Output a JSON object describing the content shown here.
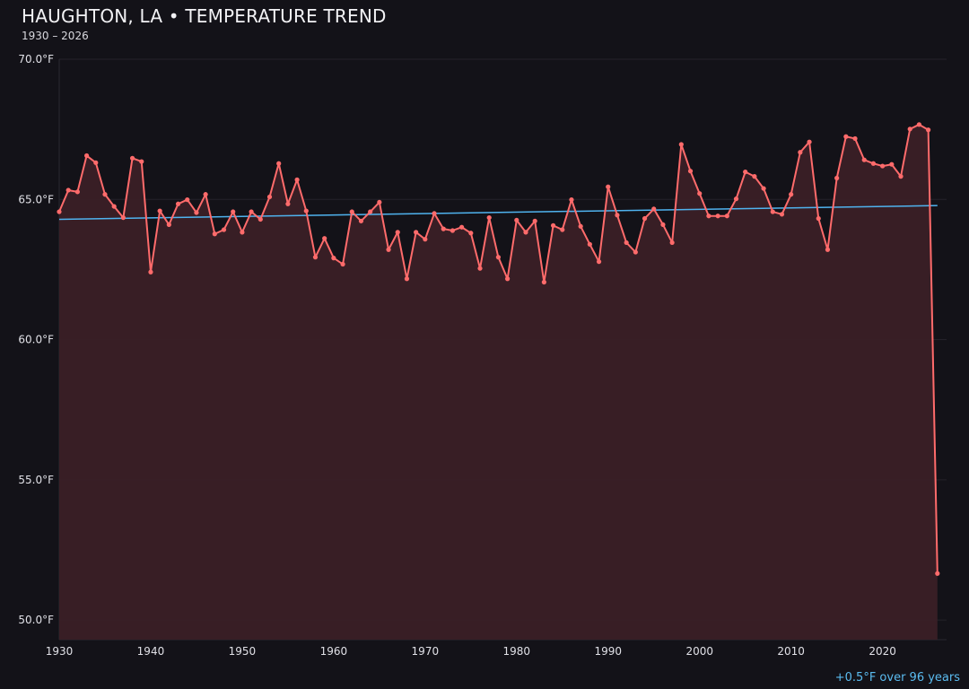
{
  "title": "HAUGHTON, LA • TEMPERATURE TREND",
  "subtitle": "1930 – 2026",
  "footer_note": "+0.5°F over 96 years",
  "colors": {
    "background": "#131218",
    "series": "#ff6b6b",
    "fill": "#3a2026",
    "trend": "#4fb3ef",
    "grid": "#24222a",
    "footer": "#5bbcf0"
  },
  "chart_data": {
    "type": "line",
    "title": "HAUGHTON, LA • TEMPERATURE TREND",
    "xlabel": "",
    "ylabel": "",
    "xlim": [
      1930,
      2027
    ],
    "ylim": [
      49.3,
      70.0
    ],
    "grid": true,
    "area_fill": true,
    "x_ticks": [
      1930,
      1940,
      1950,
      1960,
      1970,
      1980,
      1990,
      2000,
      2010,
      2020
    ],
    "y_ticks": [
      50,
      55,
      60,
      65,
      70
    ],
    "y_tick_labels": [
      "50.0°F",
      "55.0°F",
      "60.0°F",
      "65.0°F",
      "70.0°F"
    ],
    "x": [
      1930,
      1931,
      1932,
      1933,
      1934,
      1935,
      1936,
      1937,
      1938,
      1939,
      1940,
      1941,
      1942,
      1943,
      1944,
      1945,
      1946,
      1947,
      1948,
      1949,
      1950,
      1951,
      1952,
      1953,
      1954,
      1955,
      1956,
      1957,
      1958,
      1959,
      1960,
      1961,
      1962,
      1963,
      1964,
      1965,
      1966,
      1967,
      1968,
      1969,
      1970,
      1971,
      1972,
      1973,
      1974,
      1975,
      1976,
      1977,
      1978,
      1979,
      1980,
      1981,
      1982,
      1983,
      1984,
      1985,
      1986,
      1987,
      1988,
      1989,
      1990,
      1991,
      1992,
      1993,
      1994,
      1995,
      1996,
      1997,
      1998,
      1999,
      2000,
      2001,
      2002,
      2003,
      2004,
      2005,
      2006,
      2007,
      2008,
      2009,
      2010,
      2011,
      2012,
      2013,
      2014,
      2015,
      2016,
      2017,
      2018,
      2019,
      2020,
      2021,
      2022,
      2023,
      2024,
      2025,
      2026
    ],
    "values": [
      64.56,
      65.33,
      65.27,
      66.56,
      66.31,
      65.18,
      64.75,
      64.35,
      66.47,
      66.35,
      62.41,
      64.59,
      64.1,
      64.84,
      64.99,
      64.53,
      65.18,
      63.77,
      63.92,
      64.56,
      63.83,
      64.56,
      64.29,
      65.09,
      66.28,
      64.84,
      65.7,
      64.59,
      62.94,
      63.61,
      62.91,
      62.69,
      64.56,
      64.23,
      64.56,
      64.9,
      63.21,
      63.83,
      62.17,
      63.83,
      63.58,
      64.5,
      63.95,
      63.89,
      64.01,
      63.8,
      62.54,
      64.35,
      62.94,
      62.17,
      64.26,
      63.83,
      64.23,
      62.05,
      64.07,
      63.92,
      64.99,
      64.04,
      63.4,
      62.78,
      65.45,
      64.44,
      63.46,
      63.12,
      64.32,
      64.66,
      64.1,
      63.46,
      66.96,
      66.01,
      65.21,
      64.41,
      64.41,
      64.41,
      65.02,
      65.98,
      65.82,
      65.39,
      64.56,
      64.47,
      65.18,
      66.68,
      67.05,
      64.32,
      63.21,
      65.76,
      67.24,
      67.17,
      66.41,
      66.28,
      66.19,
      66.25,
      65.82,
      67.51,
      67.67,
      67.48,
      51.66
    ],
    "trend": {
      "x": [
        1930,
        2026
      ],
      "values": [
        64.29,
        64.78
      ]
    }
  }
}
